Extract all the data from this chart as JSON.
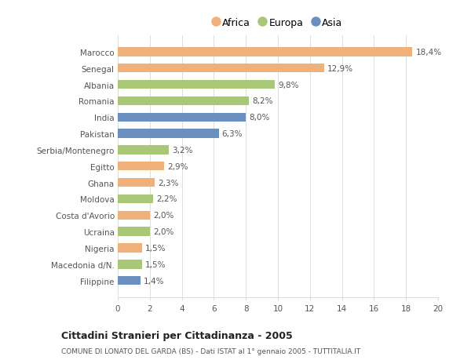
{
  "countries": [
    "Marocco",
    "Senegal",
    "Albania",
    "Romania",
    "India",
    "Pakistan",
    "Serbia/Montenegro",
    "Egitto",
    "Ghana",
    "Moldova",
    "Costa d'Avorio",
    "Ucraina",
    "Nigeria",
    "Macedonia d/N.",
    "Filippine"
  ],
  "values": [
    18.4,
    12.9,
    9.8,
    8.2,
    8.0,
    6.3,
    3.2,
    2.9,
    2.3,
    2.2,
    2.0,
    2.0,
    1.5,
    1.5,
    1.4
  ],
  "labels": [
    "18,4%",
    "12,9%",
    "9,8%",
    "8,2%",
    "8,0%",
    "6,3%",
    "3,2%",
    "2,9%",
    "2,3%",
    "2,2%",
    "2,0%",
    "2,0%",
    "1,5%",
    "1,5%",
    "1,4%"
  ],
  "continent": [
    "Africa",
    "Africa",
    "Europa",
    "Europa",
    "Asia",
    "Asia",
    "Europa",
    "Africa",
    "Africa",
    "Europa",
    "Africa",
    "Europa",
    "Africa",
    "Europa",
    "Asia"
  ],
  "colors": {
    "Africa": "#F0B07A",
    "Europa": "#A8C878",
    "Asia": "#6B8FBF"
  },
  "xlim": [
    0,
    20
  ],
  "xticks": [
    0,
    2,
    4,
    6,
    8,
    10,
    12,
    14,
    16,
    18,
    20
  ],
  "title_main": "Cittadini Stranieri per Cittadinanza - 2005",
  "title_sub": "COMUNE DI LONATO DEL GARDA (BS) - Dati ISTAT al 1° gennaio 2005 - TUTTITALIA.IT",
  "bg_color": "#ffffff",
  "bar_height": 0.55,
  "label_fontsize": 7.5,
  "tick_fontsize": 7.5,
  "legend_fontsize": 9.0
}
